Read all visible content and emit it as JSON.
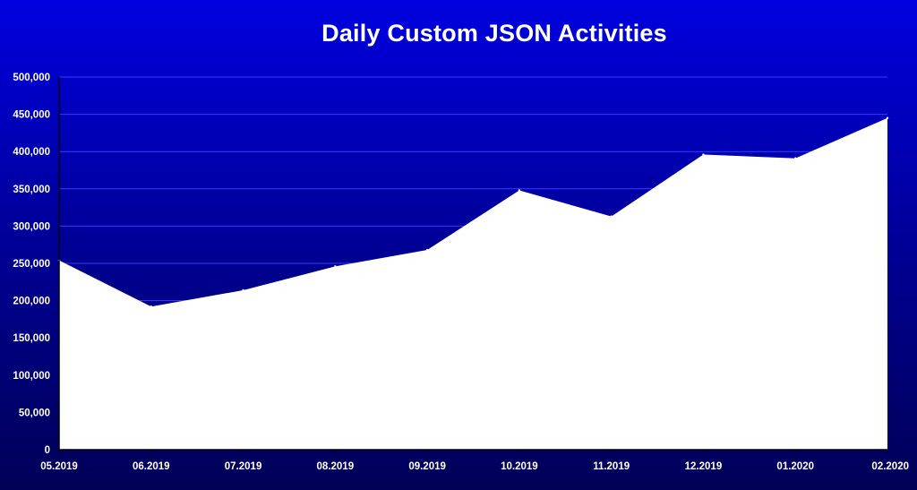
{
  "chart_data": {
    "type": "area",
    "title": "Daily Custom JSON Activities",
    "xlabel": "",
    "ylabel": "",
    "categories": [
      "05.2019",
      "06.2019",
      "07.2019",
      "08.2019",
      "09.2019",
      "10.2019",
      "11.2019",
      "12.2019",
      "01.2020",
      "02.2020"
    ],
    "series": [
      {
        "values": [
          254000,
          192000,
          214000,
          246000,
          268000,
          348000,
          313000,
          396000,
          391000,
          445000
        ]
      }
    ],
    "ylim": [
      0,
      500000
    ],
    "yticks": [
      0,
      50000,
      100000,
      150000,
      200000,
      250000,
      300000,
      350000,
      400000,
      450000,
      500000
    ],
    "ytick_labels": [
      "0",
      "50,000",
      "100,000",
      "150,000",
      "200,000",
      "250,000",
      "300,000",
      "350,000",
      "400,000",
      "450,000",
      "500,000"
    ],
    "grid": true,
    "legend": "none",
    "colors": {
      "fill": "#ffffff",
      "gridline": "#3a3aff",
      "axis": "#000000",
      "text": "#ffffff",
      "background_top": "#0000df",
      "background_bottom": "#000057"
    }
  }
}
